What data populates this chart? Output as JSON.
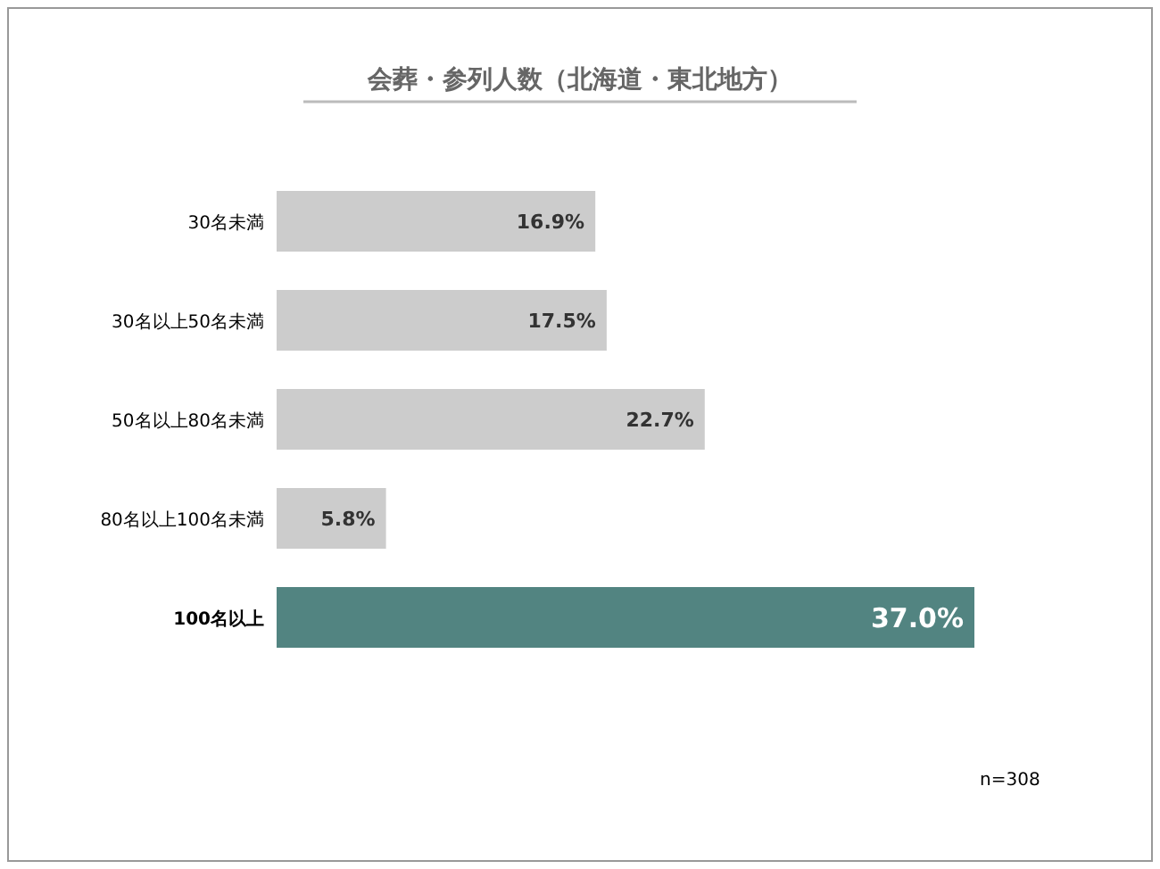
{
  "chart_data": {
    "type": "bar",
    "orientation": "horizontal",
    "title": "会葬・参列人数（北海道・東北地方）",
    "categories": [
      "30名未満",
      "30名以上50名未満",
      "50名以上80名未満",
      "80名以上100名未満",
      "100名以上"
    ],
    "values": [
      16.9,
      17.5,
      22.7,
      5.8,
      37.0
    ],
    "value_labels": [
      "16.9%",
      "17.5%",
      "22.7%",
      "5.8%",
      "37.0%"
    ],
    "colors": [
      "#cccccc",
      "#cccccc",
      "#cccccc",
      "#cccccc",
      "#528481"
    ],
    "annotations": [
      "n=308"
    ]
  }
}
